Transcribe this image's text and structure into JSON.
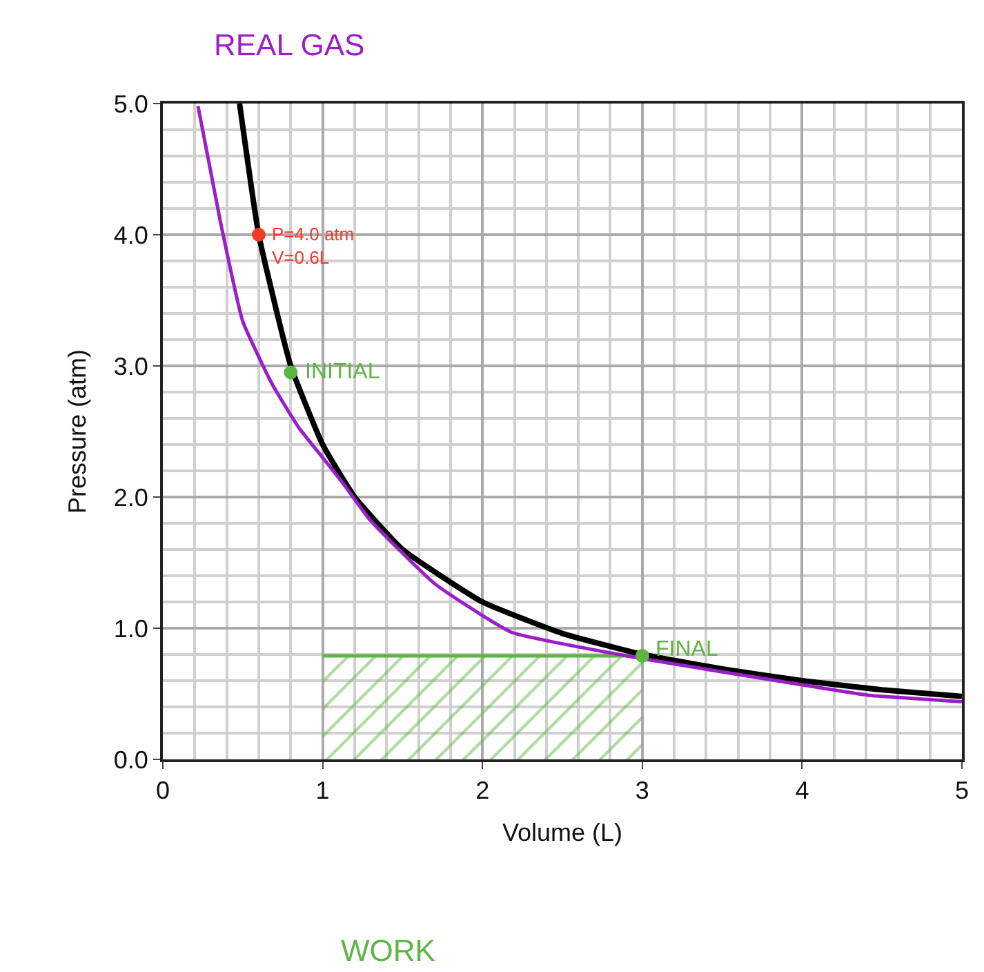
{
  "chart_data": {
    "type": "line",
    "xlabel": "Volume (L)",
    "ylabel": "Pressure (atm)",
    "xlim": [
      0,
      5
    ],
    "ylim": [
      0,
      5
    ],
    "xticks": [
      0,
      1,
      2,
      3,
      4,
      5
    ],
    "yticks": [
      {
        "value": 0,
        "label": "0.0"
      },
      {
        "value": 1,
        "label": "1.0"
      },
      {
        "value": 2,
        "label": "2.0"
      },
      {
        "value": 3,
        "label": "3.0"
      },
      {
        "value": 4,
        "label": "4.0"
      },
      {
        "value": 5,
        "label": "5.0"
      }
    ],
    "grid": true,
    "marker": "none",
    "line_style": "solid",
    "series": [
      {
        "type": "area",
        "color": "#5db544",
        "x": [
          1.0,
          3.0
        ],
        "values": [
          0.79,
          0.79
        ]
      },
      {
        "color": "#000000",
        "x": [
          0.48,
          0.6,
          0.8,
          1.0,
          1.2,
          1.5,
          2.0,
          2.5,
          3.0,
          3.5,
          4.0,
          4.5,
          5.0
        ],
        "values": [
          5.0,
          4.0,
          3.0,
          2.4,
          2.0,
          1.6,
          1.2,
          0.96,
          0.8,
          0.69,
          0.6,
          0.53,
          0.48
        ]
      },
      {
        "color": "#9b1fc8",
        "x": [
          0.22,
          0.36,
          0.5,
          0.68,
          0.85,
          1.04,
          1.13,
          1.3,
          1.7,
          2.18,
          2.99,
          3.84,
          4.41,
          5.0
        ],
        "values": [
          4.98,
          4.1,
          3.34,
          2.87,
          2.53,
          2.24,
          2.1,
          1.82,
          1.34,
          0.97,
          0.77,
          0.6,
          0.49,
          0.44
        ]
      },
      {
        "type": "scatter",
        "marker": "circle",
        "colors": [
          "#f03a2a",
          "#5db544",
          "#5db544"
        ],
        "x": [
          0.6,
          0.8,
          3.0
        ],
        "values": [
          4.0,
          2.95,
          0.79
        ]
      }
    ],
    "annotations": [
      "REAL GAS",
      {
        "text": "P=4.0 atm\nV=0.6L",
        "x": 0.6,
        "y": 4.0
      },
      {
        "text": "INITIAL",
        "x": 0.8,
        "y": 2.95
      },
      {
        "text": "FINAL",
        "x": 3.0,
        "y": 0.79
      },
      "WORK"
    ]
  }
}
